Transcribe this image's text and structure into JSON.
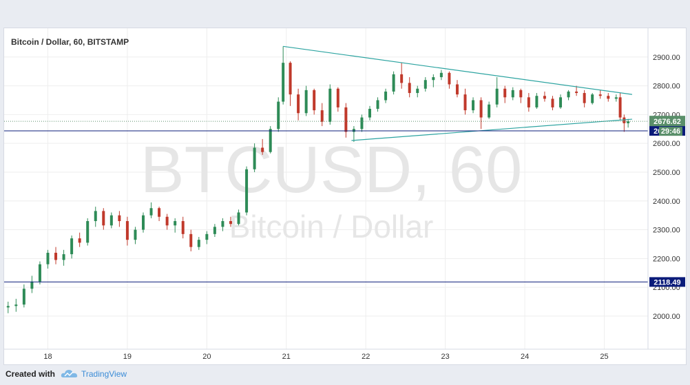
{
  "chart_title": "Bitcoin / Dollar, 60, BITSTAMP",
  "watermark": {
    "symbol": "BTCUSD, 60",
    "name": "Bitcoin / Dollar"
  },
  "footer": {
    "created_with": "Created with",
    "brand": "TradingView"
  },
  "colors": {
    "up": "#2e8b57",
    "down": "#c0392b",
    "trendline": "#2ba3a0",
    "level": "#0a1b7a",
    "last_price": "#5a8f6a",
    "grid": "#eeeeee"
  },
  "chart_data": {
    "type": "candlestick",
    "title": "Bitcoin / Dollar, 60, BITSTAMP",
    "x_tick_labels": [
      "18",
      "19",
      "20",
      "21",
      "22",
      "23",
      "24",
      "25"
    ],
    "y_tick_labels": [
      "2000.00",
      "2100.00",
      "2200.00",
      "2300.00",
      "2400.00",
      "2500.00",
      "2600.00",
      "2700.00",
      "2800.00",
      "2900.00"
    ],
    "ylim": [
      1885,
      3000
    ],
    "x_domain": [
      17.45,
      25.55
    ],
    "grid": true,
    "last_price": "2676.62",
    "countdown": "29:46",
    "horizontal_levels": [
      {
        "value": 2643.45,
        "label": "2643.45"
      },
      {
        "value": 2118.49,
        "label": "2118.49"
      }
    ],
    "trendlines": [
      {
        "name": "upper",
        "points": [
          [
            20.96,
            2937
          ],
          [
            25.35,
            2770
          ]
        ]
      },
      {
        "name": "lower",
        "points": [
          [
            21.82,
            2610
          ],
          [
            25.35,
            2684
          ]
        ]
      }
    ],
    "candles": [
      [
        17.5,
        2030,
        2050,
        2010,
        2035
      ],
      [
        17.6,
        2035,
        2060,
        2015,
        2040
      ],
      [
        17.7,
        2040,
        2110,
        2030,
        2095
      ],
      [
        17.8,
        2095,
        2140,
        2080,
        2120
      ],
      [
        17.9,
        2120,
        2190,
        2110,
        2180
      ],
      [
        18.0,
        2180,
        2230,
        2165,
        2220
      ],
      [
        18.1,
        2220,
        2240,
        2180,
        2195
      ],
      [
        18.2,
        2195,
        2230,
        2175,
        2215
      ],
      [
        18.3,
        2215,
        2280,
        2200,
        2270
      ],
      [
        18.4,
        2270,
        2290,
        2240,
        2255
      ],
      [
        18.5,
        2255,
        2340,
        2245,
        2330
      ],
      [
        18.6,
        2330,
        2380,
        2310,
        2365
      ],
      [
        18.7,
        2365,
        2375,
        2300,
        2315
      ],
      [
        18.8,
        2315,
        2360,
        2305,
        2350
      ],
      [
        18.9,
        2350,
        2365,
        2310,
        2330
      ],
      [
        19.0,
        2330,
        2345,
        2245,
        2265
      ],
      [
        19.1,
        2265,
        2310,
        2250,
        2300
      ],
      [
        19.2,
        2300,
        2360,
        2290,
        2350
      ],
      [
        19.3,
        2350,
        2395,
        2340,
        2375
      ],
      [
        19.4,
        2375,
        2380,
        2330,
        2345
      ],
      [
        19.5,
        2345,
        2355,
        2300,
        2315
      ],
      [
        19.6,
        2315,
        2340,
        2290,
        2330
      ],
      [
        19.7,
        2330,
        2345,
        2270,
        2285
      ],
      [
        19.8,
        2285,
        2300,
        2225,
        2240
      ],
      [
        19.9,
        2240,
        2275,
        2230,
        2265
      ],
      [
        20.0,
        2265,
        2295,
        2250,
        2285
      ],
      [
        20.1,
        2285,
        2320,
        2275,
        2310
      ],
      [
        20.2,
        2310,
        2340,
        2295,
        2330
      ],
      [
        20.3,
        2330,
        2345,
        2310,
        2320
      ],
      [
        20.4,
        2320,
        2370,
        2315,
        2360
      ],
      [
        20.5,
        2360,
        2520,
        2350,
        2510
      ],
      [
        20.6,
        2510,
        2600,
        2500,
        2585
      ],
      [
        20.7,
        2585,
        2615,
        2560,
        2570
      ],
      [
        20.8,
        2570,
        2660,
        2565,
        2650
      ],
      [
        20.9,
        2650,
        2760,
        2640,
        2745
      ],
      [
        20.96,
        2745,
        2937,
        2735,
        2880
      ],
      [
        21.05,
        2880,
        2885,
        2730,
        2770
      ],
      [
        21.15,
        2770,
        2790,
        2680,
        2705
      ],
      [
        21.25,
        2705,
        2800,
        2695,
        2785
      ],
      [
        21.35,
        2785,
        2790,
        2700,
        2715
      ],
      [
        21.45,
        2715,
        2740,
        2660,
        2675
      ],
      [
        21.55,
        2675,
        2805,
        2665,
        2790
      ],
      [
        21.65,
        2790,
        2795,
        2710,
        2725
      ],
      [
        21.75,
        2725,
        2740,
        2620,
        2640
      ],
      [
        21.85,
        2640,
        2660,
        2605,
        2650
      ],
      [
        21.95,
        2650,
        2700,
        2640,
        2690
      ],
      [
        22.05,
        2690,
        2730,
        2680,
        2720
      ],
      [
        22.15,
        2720,
        2760,
        2710,
        2750
      ],
      [
        22.25,
        2750,
        2790,
        2740,
        2780
      ],
      [
        22.35,
        2780,
        2850,
        2770,
        2840
      ],
      [
        22.45,
        2840,
        2880,
        2790,
        2810
      ],
      [
        22.55,
        2810,
        2830,
        2760,
        2775
      ],
      [
        22.65,
        2775,
        2800,
        2760,
        2790
      ],
      [
        22.75,
        2790,
        2830,
        2780,
        2820
      ],
      [
        22.85,
        2820,
        2840,
        2795,
        2830
      ],
      [
        22.95,
        2830,
        2855,
        2820,
        2845
      ],
      [
        23.05,
        2845,
        2850,
        2790,
        2805
      ],
      [
        23.15,
        2805,
        2820,
        2760,
        2770
      ],
      [
        23.25,
        2770,
        2790,
        2700,
        2715
      ],
      [
        23.35,
        2715,
        2760,
        2705,
        2750
      ],
      [
        23.45,
        2750,
        2760,
        2650,
        2690
      ],
      [
        23.55,
        2690,
        2745,
        2685,
        2735
      ],
      [
        23.65,
        2735,
        2830,
        2725,
        2790
      ],
      [
        23.75,
        2790,
        2800,
        2740,
        2760
      ],
      [
        23.85,
        2760,
        2795,
        2750,
        2785
      ],
      [
        23.95,
        2785,
        2790,
        2740,
        2760
      ],
      [
        24.05,
        2760,
        2775,
        2710,
        2725
      ],
      [
        24.15,
        2725,
        2775,
        2720,
        2765
      ],
      [
        24.25,
        2765,
        2780,
        2745,
        2755
      ],
      [
        24.35,
        2755,
        2765,
        2715,
        2725
      ],
      [
        24.45,
        2725,
        2770,
        2720,
        2760
      ],
      [
        24.55,
        2760,
        2785,
        2750,
        2780
      ],
      [
        24.65,
        2780,
        2800,
        2765,
        2775
      ],
      [
        24.75,
        2775,
        2785,
        2725,
        2740
      ],
      [
        24.85,
        2740,
        2775,
        2735,
        2770
      ],
      [
        24.95,
        2770,
        2785,
        2755,
        2765
      ],
      [
        25.05,
        2765,
        2775,
        2745,
        2755
      ],
      [
        25.15,
        2755,
        2770,
        2745,
        2760
      ],
      [
        25.2,
        2760,
        2775,
        2680,
        2690
      ],
      [
        25.25,
        2690,
        2700,
        2640,
        2670
      ],
      [
        25.3,
        2670,
        2685,
        2655,
        2676.62
      ]
    ]
  }
}
